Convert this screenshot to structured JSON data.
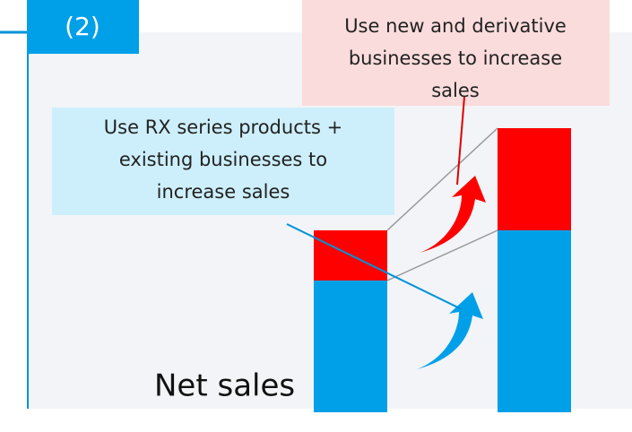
{
  "header": {
    "label": "(2)"
  },
  "callouts": [
    {
      "lines": [
        "Use new and derivative",
        "businesses to increase",
        "sales"
      ]
    },
    {
      "lines": [
        "Use RX series products +",
        "existing businesses to",
        "increase sales"
      ]
    }
  ],
  "bar_label": "Net sales"
}
